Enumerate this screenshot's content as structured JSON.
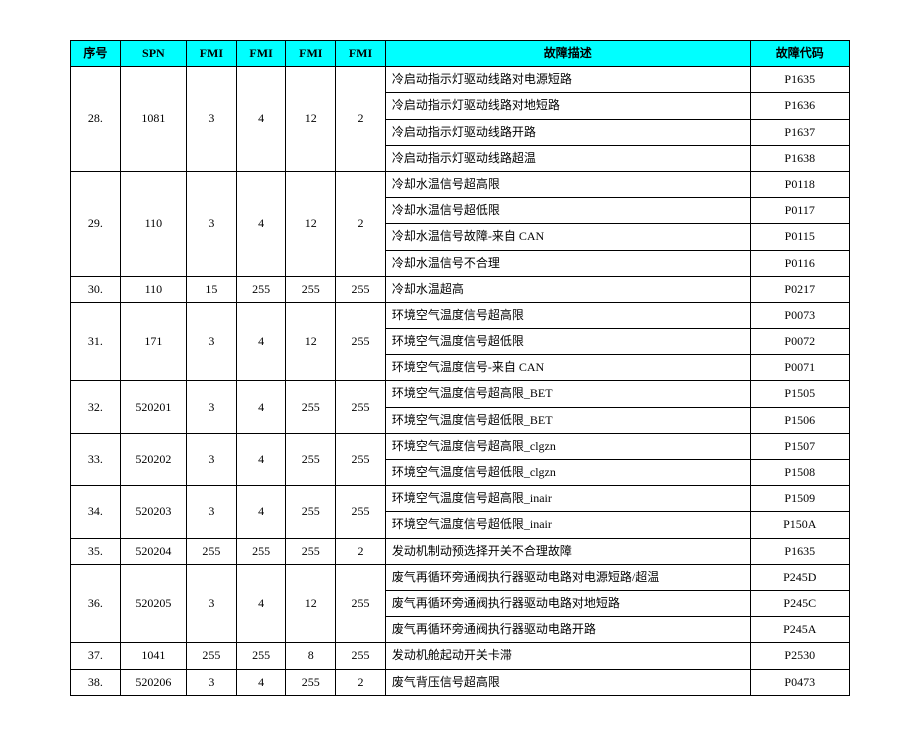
{
  "headers": {
    "seq": "序号",
    "spn": "SPN",
    "fmi1": "FMI",
    "fmi2": "FMI",
    "fmi3": "FMI",
    "fmi4": "FMI",
    "desc": "故障描述",
    "code": "故障代码"
  },
  "groups": [
    {
      "seq": "28.",
      "spn": "1081",
      "fmi": [
        "3",
        "4",
        "12",
        "2"
      ],
      "rows": [
        {
          "desc": "冷启动指示灯驱动线路对电源短路",
          "code": "P1635"
        },
        {
          "desc": "冷启动指示灯驱动线路对地短路",
          "code": "P1636"
        },
        {
          "desc": "冷启动指示灯驱动线路开路",
          "code": "P1637"
        },
        {
          "desc": "冷启动指示灯驱动线路超温",
          "code": "P1638"
        }
      ]
    },
    {
      "seq": "29.",
      "spn": "110",
      "fmi": [
        "3",
        "4",
        "12",
        "2"
      ],
      "rows": [
        {
          "desc": "冷却水温信号超高限",
          "code": "P0118"
        },
        {
          "desc": "冷却水温信号超低限",
          "code": "P0117"
        },
        {
          "desc": "冷却水温信号故障-来自 CAN",
          "code": "P0115"
        },
        {
          "desc": "冷却水温信号不合理",
          "code": "P0116"
        }
      ]
    },
    {
      "seq": "30.",
      "spn": "110",
      "fmi": [
        "15",
        "255",
        "255",
        "255"
      ],
      "rows": [
        {
          "desc": "冷却水温超高",
          "code": "P0217"
        }
      ]
    },
    {
      "seq": "31.",
      "spn": "171",
      "fmi": [
        "3",
        "4",
        "12",
        "255"
      ],
      "rows": [
        {
          "desc": "环境空气温度信号超高限",
          "code": "P0073"
        },
        {
          "desc": "环境空气温度信号超低限",
          "code": "P0072"
        },
        {
          "desc": "环境空气温度信号-来自 CAN",
          "code": "P0071"
        }
      ]
    },
    {
      "seq": "32.",
      "spn": "520201",
      "fmi": [
        "3",
        "4",
        "255",
        "255"
      ],
      "rows": [
        {
          "desc": "环境空气温度信号超高限_BET",
          "code": "P1505"
        },
        {
          "desc": "环境空气温度信号超低限_BET",
          "code": "P1506"
        }
      ]
    },
    {
      "seq": "33.",
      "spn": "520202",
      "fmi": [
        "3",
        "4",
        "255",
        "255"
      ],
      "rows": [
        {
          "desc": "环境空气温度信号超高限_clgzn",
          "code": "P1507"
        },
        {
          "desc": "环境空气温度信号超低限_clgzn",
          "code": "P1508"
        }
      ]
    },
    {
      "seq": "34.",
      "spn": "520203",
      "fmi": [
        "3",
        "4",
        "255",
        "255"
      ],
      "rows": [
        {
          "desc": "环境空气温度信号超高限_inair",
          "code": "P1509"
        },
        {
          "desc": "环境空气温度信号超低限_inair",
          "code": "P150A"
        }
      ]
    },
    {
      "seq": "35.",
      "spn": "520204",
      "fmi": [
        "255",
        "255",
        "255",
        "2"
      ],
      "rows": [
        {
          "desc": "发动机制动预选择开关不合理故障",
          "code": "P1635"
        }
      ]
    },
    {
      "seq": "36.",
      "spn": "520205",
      "fmi": [
        "3",
        "4",
        "12",
        "255"
      ],
      "rows": [
        {
          "desc": "废气再循环旁通阀执行器驱动电路对电源短路/超温",
          "code": "P245D"
        },
        {
          "desc": "废气再循环旁通阀执行器驱动电路对地短路",
          "code": "P245C"
        },
        {
          "desc": "废气再循环旁通阀执行器驱动电路开路",
          "code": "P245A"
        }
      ]
    },
    {
      "seq": "37.",
      "spn": "1041",
      "fmi": [
        "255",
        "255",
        "8",
        "255"
      ],
      "rows": [
        {
          "desc": "发动机舱起动开关卡滞",
          "code": "P2530"
        }
      ]
    },
    {
      "seq": "38.",
      "spn": "520206",
      "fmi": [
        "3",
        "4",
        "255",
        "2"
      ],
      "rows": [
        {
          "desc": "废气背压信号超高限",
          "code": "P0473"
        }
      ]
    }
  ]
}
